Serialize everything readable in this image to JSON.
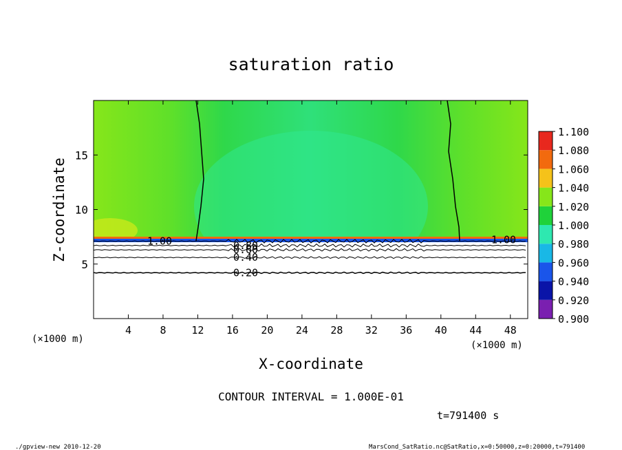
{
  "chart_data": {
    "type": "heatmap",
    "title": "saturation ratio",
    "xlabel": "X-coordinate",
    "ylabel": "Z-coordinate",
    "x_unit_left": "(×1000 m)",
    "x_unit_right": "(×1000 m)",
    "xlim": [
      0,
      50
    ],
    "ylim": [
      0,
      20
    ],
    "x_ticks": [
      "4",
      "8",
      "12",
      "16",
      "20",
      "24",
      "28",
      "32",
      "36",
      "40",
      "44",
      "48"
    ],
    "y_ticks": [
      "5",
      "10",
      "15"
    ],
    "colorbar": {
      "levels": [
        "0.900",
        "0.920",
        "0.940",
        "0.960",
        "0.980",
        "1.000",
        "1.020",
        "1.040",
        "1.060",
        "1.080",
        "1.100"
      ],
      "colors": [
        "#7a1fb0",
        "#0a14a8",
        "#1a55ea",
        "#19b8e6",
        "#2ee8b0",
        "#1fd23a",
        "#86e61a",
        "#f5c21a",
        "#f26a0e",
        "#e8281e",
        "#f5a0a0"
      ]
    },
    "fields": {
      "surface_layer_color": "#ffffff",
      "upper_color": "#5ee02a",
      "middle_color": "#2fe07a",
      "boundary_color": "#1a55ea"
    },
    "contours": [
      {
        "label": "0.20",
        "z": 4.2
      },
      {
        "label": "0.40",
        "z": 5.6
      },
      {
        "label": "0.60",
        "z": 6.3
      },
      {
        "label": "0.80",
        "z": 6.7
      },
      {
        "label": "1.00",
        "z": 7.1
      }
    ],
    "contour_interval": "CONTOUR INTERVAL = 1.000E-01",
    "time_label": "t=791400 s"
  },
  "footer": {
    "left": "./gpview-new   2010-12-20",
    "right": "MarsCond_SatRatio.nc@SatRatio,x=0:50000,z=0:20000,t=791400"
  }
}
